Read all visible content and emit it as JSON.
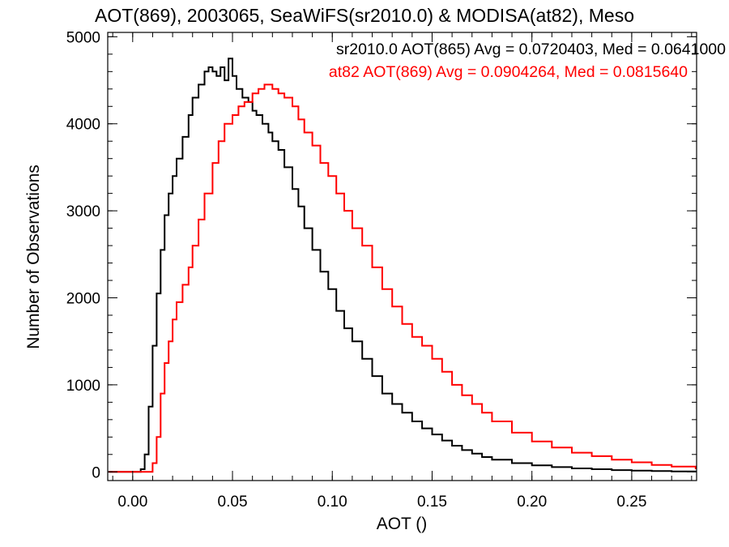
{
  "chart_data": {
    "type": "line",
    "title": "AOT(869), 2003065, SeaWiFS(sr2010.0) & MODISA(at82), Meso",
    "xlabel": "AOT ()",
    "ylabel": "Number of Observations",
    "xlim": [
      -0.0125,
      0.2825
    ],
    "ylim": [
      -100,
      5050
    ],
    "x_ticks": [
      0.0,
      0.05,
      0.1,
      0.15,
      0.2,
      0.25
    ],
    "x_tick_labels": [
      "0.00",
      "0.05",
      "0.10",
      "0.15",
      "0.20",
      "0.25"
    ],
    "y_ticks": [
      0,
      1000,
      2000,
      3000,
      4000,
      5000
    ],
    "y_tick_labels": [
      "0",
      "1000",
      "2000",
      "3000",
      "4000",
      "5000"
    ],
    "grid": false,
    "legend_position": "top-right",
    "step": true,
    "series": [
      {
        "name": "sr2010.0 AOT(865)",
        "color": "#000000",
        "label": "sr2010.0 AOT(865) Avg = 0.0720403, Med = 0.0641000",
        "x": [
          -0.012,
          0.0,
          0.004,
          0.006,
          0.008,
          0.01,
          0.012,
          0.014,
          0.016,
          0.018,
          0.02,
          0.022,
          0.025,
          0.028,
          0.03,
          0.033,
          0.036,
          0.038,
          0.04,
          0.042,
          0.044,
          0.046,
          0.048,
          0.05,
          0.052,
          0.055,
          0.058,
          0.06,
          0.062,
          0.065,
          0.068,
          0.07,
          0.073,
          0.076,
          0.08,
          0.083,
          0.086,
          0.09,
          0.094,
          0.098,
          0.102,
          0.106,
          0.11,
          0.115,
          0.12,
          0.125,
          0.13,
          0.135,
          0.14,
          0.145,
          0.15,
          0.155,
          0.16,
          0.165,
          0.17,
          0.175,
          0.18,
          0.19,
          0.2,
          0.21,
          0.22,
          0.23,
          0.24,
          0.25,
          0.26,
          0.27,
          0.282
        ],
        "y": [
          0,
          0,
          30,
          200,
          750,
          1450,
          2050,
          2550,
          2950,
          3200,
          3400,
          3600,
          3850,
          4100,
          4300,
          4450,
          4600,
          4650,
          4600,
          4550,
          4650,
          4500,
          4750,
          4550,
          4400,
          4300,
          4250,
          4150,
          4100,
          4000,
          3900,
          3800,
          3700,
          3500,
          3250,
          3050,
          2800,
          2550,
          2300,
          2100,
          1850,
          1650,
          1500,
          1300,
          1100,
          900,
          780,
          680,
          580,
          500,
          430,
          360,
          300,
          250,
          210,
          170,
          140,
          100,
          75,
          55,
          40,
          30,
          20,
          15,
          10,
          5,
          0
        ]
      },
      {
        "name": "at82 AOT(869)",
        "color": "#ff0000",
        "label": "at82 AOT(869) Avg = 0.0904264, Med = 0.0815640",
        "x": [
          -0.012,
          0.008,
          0.01,
          0.012,
          0.014,
          0.016,
          0.018,
          0.02,
          0.022,
          0.025,
          0.028,
          0.03,
          0.033,
          0.036,
          0.04,
          0.043,
          0.046,
          0.05,
          0.053,
          0.056,
          0.06,
          0.063,
          0.066,
          0.07,
          0.073,
          0.076,
          0.08,
          0.083,
          0.086,
          0.09,
          0.094,
          0.098,
          0.102,
          0.106,
          0.11,
          0.115,
          0.12,
          0.125,
          0.13,
          0.135,
          0.14,
          0.145,
          0.15,
          0.155,
          0.16,
          0.165,
          0.17,
          0.175,
          0.18,
          0.19,
          0.2,
          0.21,
          0.22,
          0.23,
          0.24,
          0.25,
          0.26,
          0.27,
          0.282
        ],
        "y": [
          0,
          0,
          100,
          400,
          900,
          1250,
          1500,
          1750,
          1950,
          2150,
          2350,
          2600,
          2900,
          3200,
          3550,
          3800,
          4000,
          4100,
          4200,
          4250,
          4350,
          4400,
          4450,
          4400,
          4350,
          4300,
          4200,
          4050,
          3900,
          3750,
          3550,
          3400,
          3200,
          3000,
          2800,
          2600,
          2350,
          2100,
          1900,
          1700,
          1550,
          1450,
          1300,
          1150,
          1000,
          880,
          780,
          680,
          580,
          450,
          350,
          280,
          220,
          180,
          140,
          110,
          80,
          60,
          30
        ]
      }
    ]
  }
}
